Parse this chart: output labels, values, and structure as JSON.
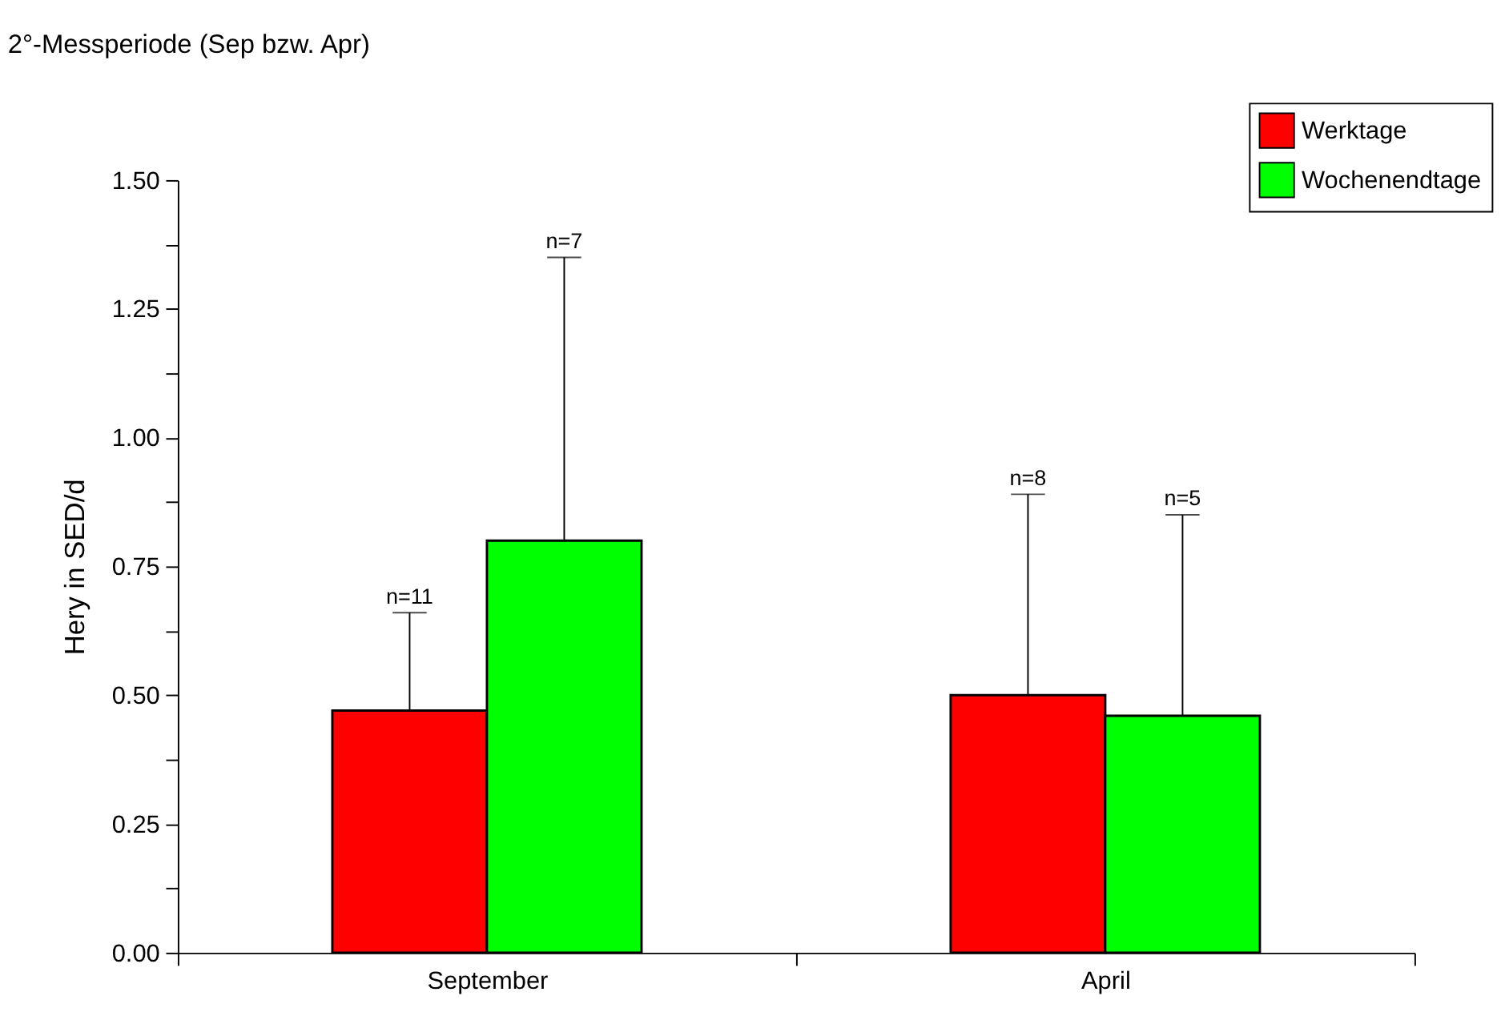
{
  "chart_data": {
    "type": "bar",
    "title": "2°-Messperiode (Sep bzw. Apr)",
    "ylabel": "Hery in SED/d",
    "categories": [
      "September",
      "April"
    ],
    "series": [
      {
        "name": "Werktage",
        "color": "#ff0000",
        "values": [
          0.47,
          0.5
        ],
        "errors": [
          [
            0.47,
            0.66
          ],
          [
            0.5,
            0.89
          ]
        ]
      },
      {
        "name": "Wochenendtage",
        "color": "#00ff00",
        "values": [
          0.8,
          0.46
        ],
        "errors": [
          [
            0.8,
            1.35
          ],
          [
            0.46,
            0.85
          ]
        ]
      }
    ],
    "annotations": [
      "n=11",
      "n=7",
      "n=8",
      "n=5"
    ],
    "ylim": [
      0,
      1.5
    ],
    "yticks": [
      {
        "value": 0,
        "label": "0.00"
      },
      {
        "value": 0.125,
        "label": null
      },
      {
        "value": 0.25,
        "label": "0.25"
      },
      {
        "value": 0.375,
        "label": null
      },
      {
        "value": 0.5,
        "label": "0.50"
      },
      {
        "value": 0.625,
        "label": null
      },
      {
        "value": 0.75,
        "label": "0.75"
      },
      {
        "value": 0.875,
        "label": null
      },
      {
        "value": 1.0,
        "label": "1.00"
      },
      {
        "value": 1.125,
        "label": null
      },
      {
        "value": 1.25,
        "label": "1.25"
      },
      {
        "value": 1.375,
        "label": null
      },
      {
        "value": 1.5,
        "label": "1.50"
      }
    ],
    "grid": false,
    "legend": "top right"
  }
}
